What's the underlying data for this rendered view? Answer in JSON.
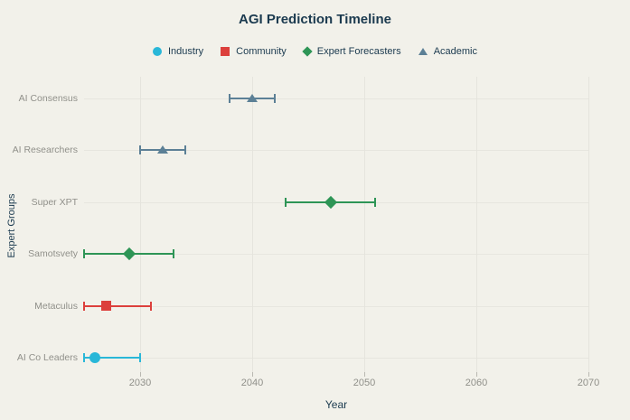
{
  "chart_data": {
    "type": "scatter",
    "title": "AGI Prediction Timeline",
    "xlabel": "Year",
    "ylabel": "Expert Groups",
    "xlim": [
      2025,
      2070
    ],
    "xticks": [
      2030,
      2040,
      2050,
      2060,
      2070
    ],
    "grid": true,
    "legend_position": "top-center",
    "categories": [
      "AI Consensus",
      "AI Researchers",
      "Super XPT",
      "Samotsvety",
      "Metaculus",
      "AI Co Leaders"
    ],
    "series": [
      {
        "name": "Industry",
        "marker": "circle",
        "color": "#29b7d8",
        "points": [
          {
            "group": "AI Co Leaders",
            "year": 2026,
            "low": 2025,
            "high": 2030
          }
        ]
      },
      {
        "name": "Community",
        "marker": "square",
        "color": "#dc403c",
        "points": [
          {
            "group": "Metaculus",
            "year": 2027,
            "low": 2025,
            "high": 2031
          }
        ]
      },
      {
        "name": "Expert Forecasters",
        "marker": "diamond",
        "color": "#2e9556",
        "points": [
          {
            "group": "Super XPT",
            "year": 2047,
            "low": 2043,
            "high": 2051
          },
          {
            "group": "Samotsvety",
            "year": 2029,
            "low": 2025,
            "high": 2033
          }
        ]
      },
      {
        "name": "Academic",
        "marker": "triangle",
        "color": "#5c8096",
        "points": [
          {
            "group": "AI Consensus",
            "year": 2040,
            "low": 2038,
            "high": 2042
          },
          {
            "group": "AI Researchers",
            "year": 2032,
            "low": 2030,
            "high": 2034
          }
        ]
      }
    ]
  },
  "colors": {
    "background": "#f2f1ea",
    "heading_text": "#1b3a4f",
    "muted_text": "#90908a",
    "gridline": "#e5e4dd",
    "tick": "#b9b8b1",
    "industry": "#29b7d8",
    "community": "#dc403c",
    "expert_forecasters": "#2e9556",
    "academic": "#5c8096"
  }
}
